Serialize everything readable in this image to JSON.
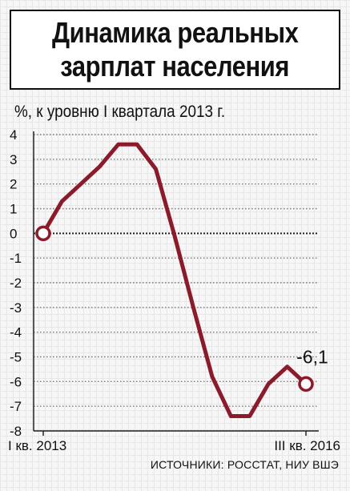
{
  "title": {
    "line1": "Динамика реальных",
    "line2": "зарплат населения"
  },
  "source_text": "ИСТОЧНИКИ: РОССТАТ, НИУ ВШЭ",
  "colors": {
    "line": "#8b1a2b",
    "text": "#111111",
    "grid": "#777777"
  },
  "chart_data": {
    "type": "line",
    "title": "",
    "ylabel": "%, к уровню I квартала 2013 г.",
    "xlabel": "",
    "ylim": [
      -8,
      4
    ],
    "yticks": [
      4,
      3,
      2,
      1,
      0,
      -1,
      -2,
      -3,
      -4,
      -5,
      -6,
      -7,
      -8
    ],
    "ytick_labels": [
      "4",
      "3",
      "2",
      "1",
      "0",
      "-1",
      "-2",
      "-3",
      "-4",
      "-5",
      "-6",
      "-7",
      "-8"
    ],
    "xtick_labels": [
      "I кв. 2013",
      "III кв. 2016"
    ],
    "grid": true,
    "series": [
      {
        "values": [
          0,
          1.3,
          2.0,
          2.7,
          3.6,
          3.6,
          2.6,
          -0.1,
          -3.0,
          -5.8,
          -7.4,
          -7.4,
          -6.1,
          -5.4,
          -6.1
        ]
      }
    ],
    "annotations": [
      {
        "label": "-6,1",
        "point_index": 14
      }
    ]
  }
}
